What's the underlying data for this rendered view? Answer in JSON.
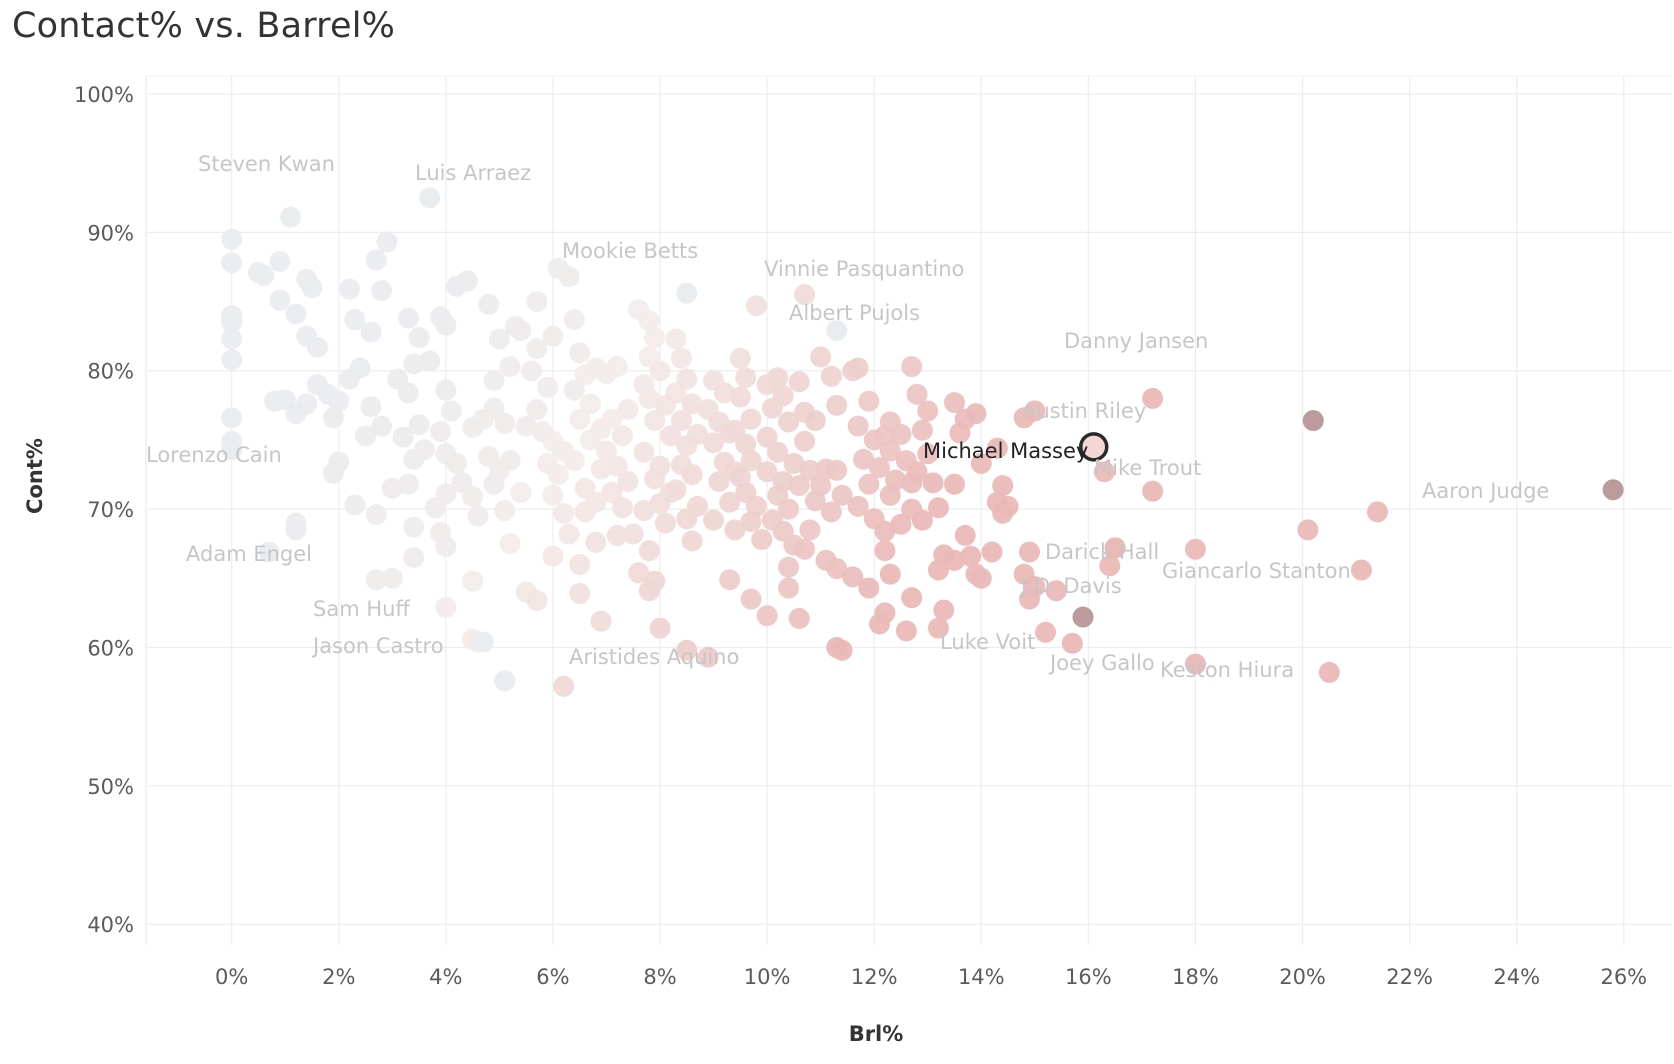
{
  "chart_data": {
    "type": "scatter",
    "title": "Contact% vs. Barrel%",
    "xlabel": "Brl%",
    "ylabel": "Cont%",
    "xlim": [
      -1.6,
      26.9
    ],
    "ylim": [
      38.5,
      101.3
    ],
    "x_ticks": [
      0,
      2,
      4,
      6,
      8,
      10,
      12,
      14,
      16,
      18,
      20,
      22,
      24,
      26
    ],
    "y_ticks": [
      40,
      50,
      60,
      70,
      80,
      90,
      100
    ],
    "x_tick_labels": [
      "0%",
      "2%",
      "4%",
      "6%",
      "8%",
      "10%",
      "12%",
      "14%",
      "16%",
      "18%",
      "20%",
      "22%",
      "24%",
      "26%"
    ],
    "y_tick_labels": [
      "40%",
      "50%",
      "60%",
      "70%",
      "80%",
      "90%",
      "100%"
    ],
    "grid": true,
    "color_scale": {
      "low": "#e9ecef",
      "mid": "#f3ecea",
      "high": "#e9b8b6",
      "dark_low": "#b9bcc3",
      "dark_high": "#b79696",
      "label": "#c6c6c6",
      "selected_label": "#222222",
      "selected_fill": "#f2d4d3",
      "selected_stroke": "#2a2a2a"
    },
    "labeled_points": [
      {
        "name": "Steven Kwan",
        "x": 1.1,
        "y": 91.1,
        "shade": "gray"
      },
      {
        "name": "Luis Arraez",
        "x": 3.7,
        "y": 92.5,
        "shade": "gray"
      },
      {
        "name": "Mookie Betts",
        "x": 8.5,
        "y": 85.6,
        "shade": "gray"
      },
      {
        "name": "Vinnie Pasquantino",
        "x": 10.7,
        "y": 85.5,
        "shade": "red"
      },
      {
        "name": "Albert Pujols",
        "x": 11.3,
        "y": 82.9,
        "shade": "gray"
      },
      {
        "name": "Danny Jansen",
        "x": 17.2,
        "y": 78.0,
        "shade": "red"
      },
      {
        "name": "Austin Riley",
        "x": 20.2,
        "y": 76.4,
        "shade": "darkred"
      },
      {
        "name": "Michael Massey",
        "x": 16.1,
        "y": 74.5,
        "shade": "selected"
      },
      {
        "name": "Lorenzo Cain",
        "x": 0.0,
        "y": 74.3,
        "shade": "gray"
      },
      {
        "name": "Mike Trout",
        "x": 17.2,
        "y": 71.3,
        "shade": "red"
      },
      {
        "name": "Aaron Judge",
        "x": 25.8,
        "y": 71.4,
        "shade": "darkred"
      },
      {
        "name": "Adam Engel",
        "x": 0.7,
        "y": 66.9,
        "shade": "gray"
      },
      {
        "name": "Darick Hall",
        "x": 16.5,
        "y": 67.2,
        "shade": "red"
      },
      {
        "name": "Giancarlo Stanton",
        "x": 21.1,
        "y": 65.6,
        "shade": "red"
      },
      {
        "name": "J.D. Davis",
        "x": 15.9,
        "y": 62.2,
        "shade": "darkred"
      },
      {
        "name": "Sam Huff",
        "x": 4.7,
        "y": 60.4,
        "shade": "gray"
      },
      {
        "name": "Luke Voit",
        "x": 15.7,
        "y": 60.3,
        "shade": "red"
      },
      {
        "name": "Jason Castro",
        "x": 5.1,
        "y": 57.6,
        "shade": "gray"
      },
      {
        "name": "Aristides Aquino",
        "x": 6.2,
        "y": 57.2,
        "shade": "red"
      },
      {
        "name": "Joey Gallo",
        "x": 18.0,
        "y": 58.8,
        "shade": "red"
      },
      {
        "name": "Keston Hiura",
        "x": 20.5,
        "y": 58.2,
        "shade": "red"
      }
    ],
    "points": [
      [
        0.0,
        89.5
      ],
      [
        0.0,
        87.8
      ],
      [
        0.0,
        84.0
      ],
      [
        0.0,
        83.5
      ],
      [
        0.0,
        82.3
      ],
      [
        0.0,
        80.8
      ],
      [
        0.0,
        76.6
      ],
      [
        0.0,
        74.9
      ],
      [
        0.5,
        87.1
      ],
      [
        0.6,
        86.9
      ],
      [
        0.9,
        87.9
      ],
      [
        0.9,
        85.1
      ],
      [
        1.2,
        84.1
      ],
      [
        1.4,
        86.6
      ],
      [
        1.5,
        86.0
      ],
      [
        0.8,
        77.8
      ],
      [
        1.0,
        77.9
      ],
      [
        1.2,
        76.9
      ],
      [
        1.4,
        77.6
      ],
      [
        1.6,
        79.0
      ],
      [
        1.8,
        78.3
      ],
      [
        2.0,
        77.8
      ],
      [
        1.9,
        76.6
      ],
      [
        1.2,
        69.0
      ],
      [
        1.2,
        68.5
      ],
      [
        1.9,
        72.6
      ],
      [
        2.0,
        73.4
      ],
      [
        1.4,
        82.5
      ],
      [
        1.6,
        81.7
      ],
      [
        2.2,
        85.9
      ],
      [
        2.3,
        83.7
      ],
      [
        2.7,
        88.0
      ],
      [
        2.8,
        85.8
      ],
      [
        2.9,
        89.3
      ],
      [
        2.6,
        82.8
      ],
      [
        2.4,
        80.2
      ],
      [
        2.2,
        79.4
      ],
      [
        2.6,
        77.4
      ],
      [
        2.8,
        76.0
      ],
      [
        2.5,
        75.3
      ],
      [
        2.3,
        70.3
      ],
      [
        2.7,
        69.6
      ],
      [
        3.0,
        71.5
      ],
      [
        3.3,
        71.8
      ],
      [
        3.2,
        75.2
      ],
      [
        3.4,
        73.6
      ],
      [
        3.6,
        74.3
      ],
      [
        3.5,
        76.1
      ],
      [
        3.3,
        78.4
      ],
      [
        3.1,
        79.4
      ],
      [
        3.4,
        80.5
      ],
      [
        3.7,
        80.7
      ],
      [
        3.3,
        83.8
      ],
      [
        3.5,
        82.4
      ],
      [
        3.9,
        83.9
      ],
      [
        4.0,
        83.3
      ],
      [
        4.4,
        86.5
      ],
      [
        4.2,
        86.1
      ],
      [
        4.8,
        84.8
      ],
      [
        4.0,
        78.6
      ],
      [
        4.1,
        77.1
      ],
      [
        3.9,
        75.6
      ],
      [
        4.0,
        74.0
      ],
      [
        4.2,
        73.3
      ],
      [
        4.3,
        71.9
      ],
      [
        4.0,
        71.1
      ],
      [
        3.8,
        70.1
      ],
      [
        3.4,
        68.7
      ],
      [
        3.9,
        68.3
      ],
      [
        4.0,
        67.3
      ],
      [
        3.4,
        66.5
      ],
      [
        4.0,
        62.9
      ],
      [
        4.5,
        60.6
      ],
      [
        4.6,
        60.4
      ],
      [
        3.0,
        65.0
      ],
      [
        2.7,
        64.9
      ],
      [
        4.5,
        64.8
      ],
      [
        5.1,
        57.6
      ],
      [
        4.5,
        75.9
      ],
      [
        4.7,
        76.5
      ],
      [
        4.9,
        77.3
      ],
      [
        5.1,
        76.2
      ],
      [
        4.8,
        73.8
      ],
      [
        5.0,
        72.8
      ],
      [
        5.2,
        73.5
      ],
      [
        4.9,
        71.8
      ],
      [
        4.5,
        70.9
      ],
      [
        4.6,
        69.5
      ],
      [
        5.1,
        69.9
      ],
      [
        5.4,
        71.2
      ],
      [
        5.2,
        67.5
      ],
      [
        5.5,
        64.0
      ],
      [
        5.7,
        63.4
      ],
      [
        6.0,
        66.6
      ],
      [
        4.9,
        79.3
      ],
      [
        5.2,
        80.3
      ],
      [
        5.0,
        82.3
      ],
      [
        5.4,
        82.9
      ],
      [
        5.3,
        83.2
      ],
      [
        5.7,
        81.6
      ],
      [
        5.6,
        80.0
      ],
      [
        5.9,
        78.8
      ],
      [
        5.7,
        77.2
      ],
      [
        5.5,
        76.0
      ],
      [
        5.8,
        75.6
      ],
      [
        6.0,
        74.9
      ],
      [
        6.2,
        74.2
      ],
      [
        5.9,
        73.3
      ],
      [
        6.1,
        72.5
      ],
      [
        6.0,
        71.0
      ],
      [
        6.2,
        69.7
      ],
      [
        6.3,
        68.2
      ],
      [
        6.5,
        66.0
      ],
      [
        6.5,
        63.9
      ],
      [
        6.9,
        61.9
      ],
      [
        6.1,
        87.4
      ],
      [
        6.3,
        86.8
      ],
      [
        5.7,
        85.0
      ],
      [
        6.4,
        83.7
      ],
      [
        6.0,
        82.5
      ],
      [
        6.5,
        81.3
      ],
      [
        6.8,
        80.2
      ],
      [
        6.6,
        79.7
      ],
      [
        6.4,
        78.6
      ],
      [
        6.7,
        77.6
      ],
      [
        6.5,
        76.5
      ],
      [
        6.9,
        75.8
      ],
      [
        6.7,
        75.0
      ],
      [
        6.4,
        73.5
      ],
      [
        6.9,
        72.9
      ],
      [
        6.6,
        71.5
      ],
      [
        6.8,
        70.5
      ],
      [
        6.6,
        69.8
      ],
      [
        6.8,
        67.6
      ],
      [
        7.0,
        79.8
      ],
      [
        7.2,
        80.3
      ],
      [
        7.4,
        77.2
      ],
      [
        7.1,
        76.5
      ],
      [
        7.3,
        75.3
      ],
      [
        7.0,
        74.2
      ],
      [
        7.2,
        73.1
      ],
      [
        7.4,
        72.0
      ],
      [
        7.1,
        71.2
      ],
      [
        7.3,
        70.1
      ],
      [
        7.5,
        68.2
      ],
      [
        7.2,
        68.1
      ],
      [
        7.6,
        65.4
      ],
      [
        7.8,
        64.1
      ],
      [
        7.9,
        64.8
      ],
      [
        8.0,
        61.4
      ],
      [
        7.6,
        84.4
      ],
      [
        7.8,
        83.6
      ],
      [
        7.9,
        82.4
      ],
      [
        7.8,
        81.0
      ],
      [
        8.0,
        80.0
      ],
      [
        7.7,
        79.0
      ],
      [
        7.8,
        78.0
      ],
      [
        8.1,
        77.5
      ],
      [
        7.9,
        76.4
      ],
      [
        8.2,
        75.3
      ],
      [
        7.7,
        74.1
      ],
      [
        8.0,
        73.1
      ],
      [
        7.9,
        72.2
      ],
      [
        8.2,
        71.2
      ],
      [
        8.0,
        70.4
      ],
      [
        7.7,
        69.9
      ],
      [
        8.1,
        69.0
      ],
      [
        7.8,
        67.0
      ],
      [
        8.3,
        82.3
      ],
      [
        8.4,
        80.9
      ],
      [
        8.5,
        79.4
      ],
      [
        8.3,
        78.4
      ],
      [
        8.6,
        77.6
      ],
      [
        8.4,
        76.4
      ],
      [
        8.7,
        75.4
      ],
      [
        8.5,
        74.6
      ],
      [
        8.4,
        73.2
      ],
      [
        8.6,
        72.5
      ],
      [
        8.3,
        71.4
      ],
      [
        8.7,
        70.2
      ],
      [
        8.5,
        69.3
      ],
      [
        8.6,
        67.7
      ],
      [
        8.5,
        59.8
      ],
      [
        8.9,
        59.3
      ],
      [
        9.0,
        79.3
      ],
      [
        9.2,
        78.4
      ],
      [
        8.9,
        77.2
      ],
      [
        9.1,
        76.3
      ],
      [
        9.3,
        75.5
      ],
      [
        9.0,
        74.8
      ],
      [
        9.2,
        73.4
      ],
      [
        9.4,
        72.7
      ],
      [
        9.1,
        72.0
      ],
      [
        9.3,
        70.5
      ],
      [
        9.0,
        69.2
      ],
      [
        9.4,
        68.5
      ],
      [
        9.3,
        64.9
      ],
      [
        9.5,
        80.9
      ],
      [
        9.6,
        79.5
      ],
      [
        9.5,
        78.1
      ],
      [
        9.7,
        76.5
      ],
      [
        9.4,
        75.7
      ],
      [
        9.6,
        74.7
      ],
      [
        9.7,
        73.5
      ],
      [
        9.5,
        72.3
      ],
      [
        9.6,
        71.2
      ],
      [
        9.8,
        70.2
      ],
      [
        9.7,
        69.1
      ],
      [
        9.9,
        67.8
      ],
      [
        9.7,
        63.5
      ],
      [
        9.8,
        84.7
      ],
      [
        10.0,
        79.0
      ],
      [
        10.2,
        79.5
      ],
      [
        10.3,
        78.2
      ],
      [
        10.1,
        77.3
      ],
      [
        10.4,
        76.3
      ],
      [
        10.0,
        75.2
      ],
      [
        10.2,
        74.1
      ],
      [
        10.5,
        73.3
      ],
      [
        10.0,
        72.7
      ],
      [
        10.3,
        72.0
      ],
      [
        10.2,
        71.0
      ],
      [
        10.4,
        70.0
      ],
      [
        10.1,
        69.2
      ],
      [
        10.3,
        68.4
      ],
      [
        10.5,
        67.4
      ],
      [
        10.4,
        65.8
      ],
      [
        10.4,
        64.3
      ],
      [
        10.0,
        62.3
      ],
      [
        10.6,
        62.1
      ],
      [
        10.6,
        79.2
      ],
      [
        10.7,
        77.0
      ],
      [
        10.9,
        76.4
      ],
      [
        10.7,
        74.9
      ],
      [
        10.8,
        72.8
      ],
      [
        10.6,
        71.7
      ],
      [
        10.9,
        70.6
      ],
      [
        10.8,
        68.5
      ],
      [
        10.7,
        67.1
      ],
      [
        11.0,
        81.0
      ],
      [
        11.2,
        79.6
      ],
      [
        11.3,
        77.5
      ],
      [
        11.1,
        72.9
      ],
      [
        11.3,
        72.8
      ],
      [
        11.0,
        71.7
      ],
      [
        11.4,
        71.0
      ],
      [
        11.2,
        69.8
      ],
      [
        11.1,
        66.3
      ],
      [
        11.3,
        65.7
      ],
      [
        11.3,
        60.0
      ],
      [
        11.4,
        59.8
      ],
      [
        11.7,
        80.2
      ],
      [
        11.6,
        80.0
      ],
      [
        11.9,
        77.8
      ],
      [
        11.7,
        76.0
      ],
      [
        12.0,
        75.0
      ],
      [
        11.8,
        73.6
      ],
      [
        12.1,
        73.0
      ],
      [
        11.9,
        71.8
      ],
      [
        11.7,
        70.2
      ],
      [
        12.0,
        69.3
      ],
      [
        12.2,
        68.4
      ],
      [
        11.6,
        65.1
      ],
      [
        11.9,
        64.3
      ],
      [
        12.2,
        62.5
      ],
      [
        12.1,
        61.7
      ],
      [
        12.3,
        76.3
      ],
      [
        12.2,
        75.3
      ],
      [
        12.5,
        75.4
      ],
      [
        12.3,
        74.2
      ],
      [
        12.6,
        73.5
      ],
      [
        12.4,
        72.1
      ],
      [
        12.7,
        71.9
      ],
      [
        12.3,
        71.0
      ],
      [
        12.7,
        70.0
      ],
      [
        12.5,
        68.9
      ],
      [
        12.2,
        67.0
      ],
      [
        12.3,
        65.3
      ],
      [
        12.7,
        63.6
      ],
      [
        12.6,
        61.2
      ],
      [
        12.7,
        80.3
      ],
      [
        12.8,
        78.3
      ],
      [
        13.0,
        77.1
      ],
      [
        12.9,
        75.7
      ],
      [
        13.0,
        74.0
      ],
      [
        12.8,
        72.7
      ],
      [
        13.1,
        71.9
      ],
      [
        13.2,
        70.1
      ],
      [
        12.9,
        69.2
      ],
      [
        13.3,
        66.7
      ],
      [
        13.2,
        65.6
      ],
      [
        13.3,
        62.7
      ],
      [
        13.2,
        61.4
      ],
      [
        13.5,
        77.7
      ],
      [
        13.7,
        76.5
      ],
      [
        13.6,
        75.5
      ],
      [
        13.9,
        76.9
      ],
      [
        13.5,
        71.8
      ],
      [
        13.7,
        68.1
      ],
      [
        13.5,
        66.3
      ],
      [
        13.8,
        66.6
      ],
      [
        14.0,
        65.0
      ],
      [
        13.9,
        65.3
      ],
      [
        14.3,
        74.4
      ],
      [
        14.0,
        73.3
      ],
      [
        14.4,
        71.7
      ],
      [
        14.3,
        70.5
      ],
      [
        14.5,
        70.2
      ],
      [
        14.4,
        69.7
      ],
      [
        14.2,
        66.9
      ],
      [
        14.8,
        76.6
      ],
      [
        15.0,
        77.1
      ],
      [
        14.9,
        66.9
      ],
      [
        14.8,
        65.3
      ],
      [
        15.0,
        64.4
      ],
      [
        14.9,
        63.5
      ],
      [
        15.2,
        61.1
      ],
      [
        15.4,
        64.1
      ],
      [
        16.3,
        72.7
      ],
      [
        16.4,
        65.9
      ],
      [
        16.5,
        67.2
      ],
      [
        18.0,
        67.1
      ],
      [
        20.1,
        68.5
      ],
      [
        21.4,
        69.8
      ]
    ]
  }
}
